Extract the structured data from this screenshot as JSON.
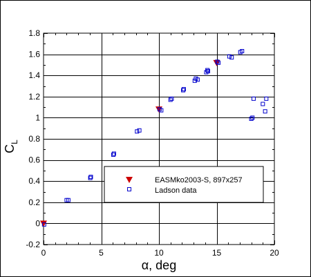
{
  "chart_data": {
    "type": "scatter",
    "title": "",
    "xlabel": "α, deg",
    "xlabel_symbol": "α",
    "xlabel_rest": ", deg",
    "ylabel": "CL",
    "ylabel_main": "C",
    "ylabel_sub": "L",
    "xlim": [
      0,
      20
    ],
    "ylim": [
      -0.2,
      1.8
    ],
    "xticks": [
      0,
      5,
      10,
      15,
      20
    ],
    "yticks": [
      -0.2,
      0,
      0.2,
      0.4,
      0.6,
      0.8,
      1,
      1.2,
      1.4,
      1.6,
      1.8
    ],
    "xtick_labels": [
      "0",
      "5",
      "10",
      "15",
      "20"
    ],
    "ytick_labels": [
      "-0.2",
      "0",
      "0.2",
      "0.4",
      "0.6",
      "0.8",
      "1",
      "1.2",
      "1.4",
      "1.6",
      "1.8"
    ],
    "grid": true,
    "legend_position": "lower-right",
    "series": [
      {
        "name": "EASMko2003-S, 897x257",
        "marker": "triangle-down",
        "color": "#cc0000",
        "x": [
          0,
          10,
          15
        ],
        "y": [
          0,
          1.08,
          1.52
        ]
      },
      {
        "name": "Ladson data",
        "marker": "square-open",
        "color": "#0000cc",
        "x": [
          0.05,
          2.0,
          2.15,
          4.05,
          4.1,
          6.05,
          6.1,
          8.1,
          8.3,
          10.05,
          10.2,
          11.0,
          11.1,
          12.1,
          12.15,
          13.1,
          13.2,
          13.35,
          14.1,
          14.2,
          14.25,
          15.05,
          15.15,
          16.1,
          16.3,
          17.05,
          17.2,
          18.0,
          18.1,
          18.2,
          19.0,
          19.2,
          19.3
        ],
        "y": [
          -0.01,
          0.22,
          0.22,
          0.43,
          0.44,
          0.65,
          0.66,
          0.87,
          0.88,
          1.08,
          1.07,
          1.17,
          1.18,
          1.26,
          1.27,
          1.35,
          1.37,
          1.36,
          1.43,
          1.45,
          1.44,
          1.53,
          1.52,
          1.58,
          1.57,
          1.62,
          1.63,
          0.99,
          1.0,
          1.18,
          1.13,
          1.06,
          1.18
        ]
      }
    ]
  }
}
